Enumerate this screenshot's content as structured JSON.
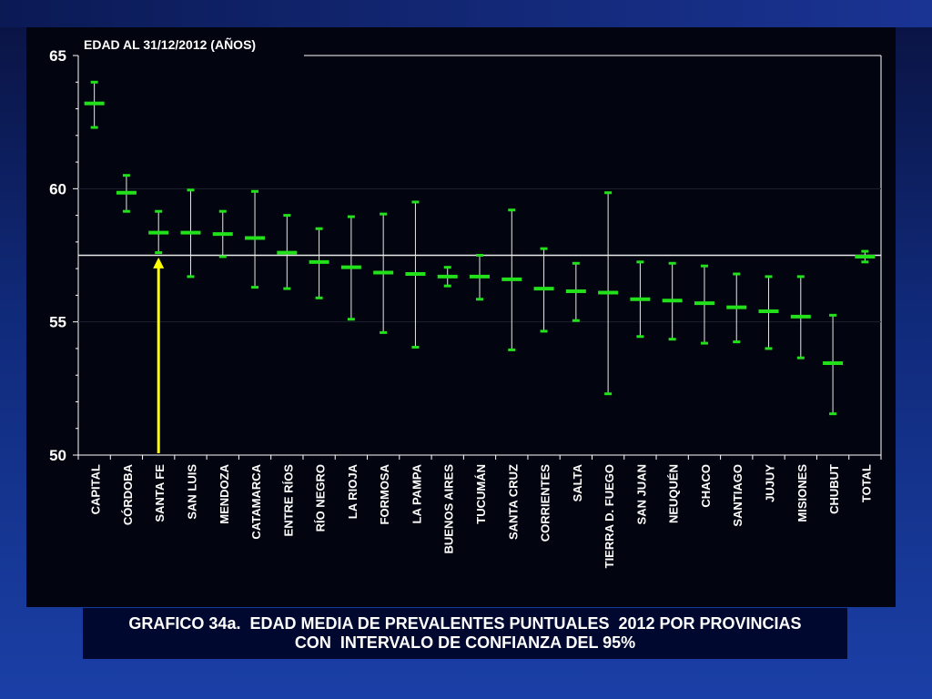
{
  "caption": {
    "line1": "GRAFICO 34a.  EDAD MEDIA DE PREVALENTES PUNTUALES  2012 POR PROVINCIAS",
    "line2": "CON  INTERVALO DE CONFIANZA DEL 95%"
  },
  "chart_data": {
    "type": "errorbar",
    "title": "EDAD AL 31/12/2012 (AÑOS)",
    "ylim": [
      50,
      65
    ],
    "yticks": [
      "50",
      "55",
      "60",
      "65"
    ],
    "reference_line": 57.5,
    "annotation": "arrow pointing to SANTA FE",
    "colors": {
      "marker": "#22e01a",
      "whisker": "#e8e8e8",
      "arrow": "#ffff00",
      "background": "#02050f",
      "axis": "#ffffff"
    },
    "categories": [
      "CAPITAL",
      "CÓRDOBA",
      "SANTA FE",
      "SAN LUIS",
      "MENDOZA",
      "CATAMARCA",
      "ENTRE RÍOS",
      "RÍO NEGRO",
      "LA RIOJA",
      "FORMOSA",
      "LA PAMPA",
      "BUENOS AIRES",
      "TUCUMÁN",
      "SANTA CRUZ",
      "CORRIENTES",
      "SALTA",
      "TIERRA  D. FUEGO",
      "SAN JUAN",
      "NEUQUÉN",
      "CHACO",
      "SANTIAGO",
      "JUJUY",
      "MISIONES",
      "CHUBUT",
      "TOTAL"
    ],
    "mean": [
      63.2,
      59.85,
      58.35,
      58.35,
      58.3,
      58.15,
      57.6,
      57.25,
      57.05,
      56.85,
      56.8,
      56.7,
      56.7,
      56.6,
      56.25,
      56.15,
      56.1,
      55.85,
      55.8,
      55.7,
      55.55,
      55.4,
      55.2,
      53.45,
      57.45
    ],
    "lower": [
      62.3,
      59.15,
      57.6,
      56.7,
      57.45,
      56.3,
      56.25,
      55.9,
      55.1,
      54.6,
      54.05,
      56.35,
      55.85,
      53.95,
      54.65,
      55.05,
      52.3,
      54.45,
      54.35,
      54.2,
      54.25,
      54.0,
      53.65,
      51.55,
      57.25
    ],
    "upper": [
      64.0,
      60.5,
      59.15,
      59.95,
      59.15,
      59.9,
      59.0,
      58.5,
      58.95,
      59.05,
      59.5,
      57.05,
      57.5,
      59.2,
      57.75,
      57.2,
      59.85,
      57.25,
      57.2,
      57.1,
      56.8,
      56.7,
      56.7,
      55.25,
      57.65
    ]
  }
}
